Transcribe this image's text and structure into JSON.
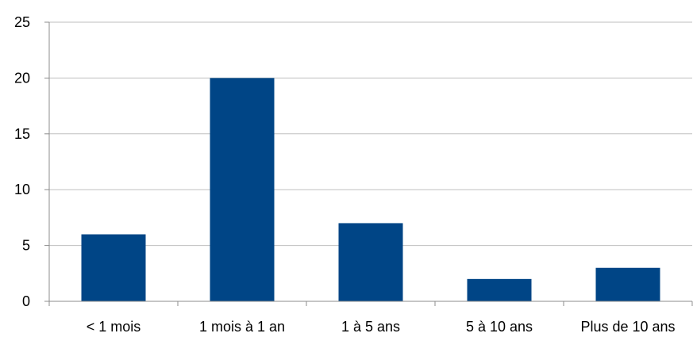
{
  "chart_data": {
    "type": "bar",
    "title": "",
    "xlabel": "",
    "ylabel": "",
    "categories": [
      "< 1 mois",
      "1 mois à 1 an",
      "1 à 5 ans",
      "5 à 10 ans",
      "Plus de 10 ans"
    ],
    "values": [
      6,
      20,
      7,
      2,
      3
    ],
    "ylim": [
      0,
      25
    ],
    "yticks": [
      0,
      5,
      10,
      15,
      20,
      25
    ],
    "grid": true,
    "legend": "none",
    "colors": {
      "bar": "#004586",
      "grid": "#bfbfbf",
      "axis": "#8c8c8c"
    }
  }
}
